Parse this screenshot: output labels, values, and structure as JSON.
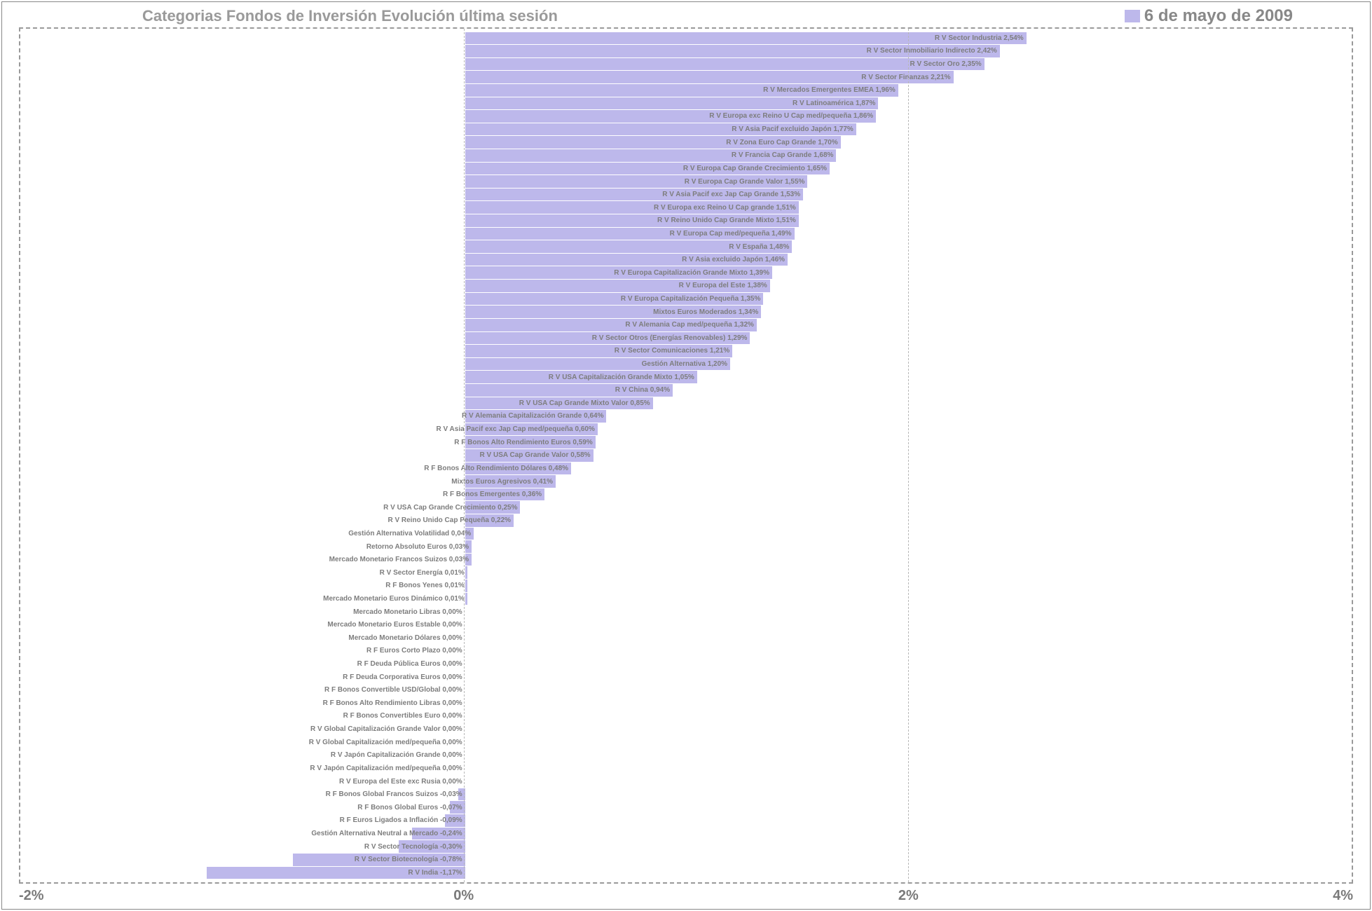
{
  "title": "Categorias Fondos de Inversión Evolución última sesión",
  "date": "6 de mayo de 2009",
  "bar_color": "#bdb8eb",
  "text_color": "#7d7d7d",
  "axis": {
    "min": -2,
    "max": 4,
    "ticks": [
      -2,
      0,
      2,
      4
    ],
    "labels": [
      "-2%",
      "0%",
      "2%",
      "4%"
    ]
  },
  "data": [
    {
      "label": "R V Sector Industria 2,54%",
      "value": 2.54
    },
    {
      "label": "R V Sector Inmobiliario Indirecto 2,42%",
      "value": 2.42
    },
    {
      "label": "R V Sector Oro 2,35%",
      "value": 2.35
    },
    {
      "label": "R V Sector Finanzas 2,21%",
      "value": 2.21
    },
    {
      "label": "R V Mercados Emergentes EMEA 1,96%",
      "value": 1.96
    },
    {
      "label": "R V Latinoamérica 1,87%",
      "value": 1.87
    },
    {
      "label": "R V Europa exc Reino U Cap med/pequeña 1,86%",
      "value": 1.86
    },
    {
      "label": "R V Asia Pacif excluido Japón 1,77%",
      "value": 1.77
    },
    {
      "label": "R V Zona Euro Cap Grande 1,70%",
      "value": 1.7
    },
    {
      "label": "R V Francia Cap Grande 1,68%",
      "value": 1.68
    },
    {
      "label": "R V Europa Cap Grande Crecimiento 1,65%",
      "value": 1.65
    },
    {
      "label": "R V Europa Cap Grande Valor 1,55%",
      "value": 1.55
    },
    {
      "label": "R V Asia Pacif exc Jap Cap Grande 1,53%",
      "value": 1.53
    },
    {
      "label": "R V Europa exc Reino U Cap grande 1,51%",
      "value": 1.51
    },
    {
      "label": "R V Reino Unido Cap Grande Mixto 1,51%",
      "value": 1.51
    },
    {
      "label": "R V Europa Cap med/pequeña 1,49%",
      "value": 1.49
    },
    {
      "label": "R V España 1,48%",
      "value": 1.48
    },
    {
      "label": "R V Asia excluido Japón 1,46%",
      "value": 1.46
    },
    {
      "label": "R V Europa Capitalización Grande Mixto 1,39%",
      "value": 1.39
    },
    {
      "label": "R V Europa del Este 1,38%",
      "value": 1.38
    },
    {
      "label": "R V Europa Capitalización Pequeña 1,35%",
      "value": 1.35
    },
    {
      "label": "Mixtos Euros Moderados 1,34%",
      "value": 1.34
    },
    {
      "label": "R V Alemania Cap med/pequeña 1,32%",
      "value": 1.32
    },
    {
      "label": "R V Sector Otros (Energías Renovables) 1,29%",
      "value": 1.29
    },
    {
      "label": "R V Sector Comunicaciones 1,21%",
      "value": 1.21
    },
    {
      "label": "Gestión Alternativa 1,20%",
      "value": 1.2
    },
    {
      "label": "R V USA Capitalización Grande Mixto 1,05%",
      "value": 1.05
    },
    {
      "label": "R V China 0,94%",
      "value": 0.94
    },
    {
      "label": "R V USA Cap Grande Mixto Valor 0,85%",
      "value": 0.85
    },
    {
      "label": "R V Alemania Capitalización Grande 0,64%",
      "value": 0.64
    },
    {
      "label": "R V Asia Pacif exc Jap Cap med/pequeña 0,60%",
      "value": 0.6
    },
    {
      "label": "R F Bonos Alto Rendimiento Euros 0,59%",
      "value": 0.59
    },
    {
      "label": "R V USA Cap Grande Valor 0,58%",
      "value": 0.58
    },
    {
      "label": "R F Bonos Alto Rendimiento Dólares 0,48%",
      "value": 0.48
    },
    {
      "label": "Mixtos Euros Agresivos 0,41%",
      "value": 0.41
    },
    {
      "label": "R F Bonos Emergentes 0,36%",
      "value": 0.36
    },
    {
      "label": "R V USA Cap Grande Crecimiento 0,25%",
      "value": 0.25
    },
    {
      "label": "R V Reino Unido Cap Pequeña 0,22%",
      "value": 0.22
    },
    {
      "label": "Gestión Alternativa Volatilidad 0,04%",
      "value": 0.04
    },
    {
      "label": "Retorno Absoluto Euros 0,03%",
      "value": 0.03
    },
    {
      "label": "Mercado Monetario Francos Suizos 0,03%",
      "value": 0.03
    },
    {
      "label": "R V Sector Energía 0,01%",
      "value": 0.01
    },
    {
      "label": "R F Bonos Yenes 0,01%",
      "value": 0.01
    },
    {
      "label": "Mercado Monetario Euros Dinámico 0,01%",
      "value": 0.01
    },
    {
      "label": "Mercado Monetario Libras 0,00%",
      "value": 0.0
    },
    {
      "label": "Mercado Monetario Euros Estable 0,00%",
      "value": 0.0
    },
    {
      "label": "Mercado Monetario Dólares 0,00%",
      "value": 0.0
    },
    {
      "label": "R F Euros Corto Plazo 0,00%",
      "value": 0.0
    },
    {
      "label": "R F Deuda Pública Euros 0,00%",
      "value": 0.0
    },
    {
      "label": "R F Deuda Corporativa Euros 0,00%",
      "value": 0.0
    },
    {
      "label": "R F Bonos Convertible USD/Global 0,00%",
      "value": 0.0
    },
    {
      "label": "R F Bonos Alto Rendimiento Libras 0,00%",
      "value": 0.0
    },
    {
      "label": "R F Bonos Convertibles Euro 0,00%",
      "value": 0.0
    },
    {
      "label": "R V Global Capitalización Grande Valor 0,00%",
      "value": 0.0
    },
    {
      "label": "R V Global Capitalización med/pequeña 0,00%",
      "value": 0.0
    },
    {
      "label": "R V Japón Capitalización Grande 0,00%",
      "value": 0.0
    },
    {
      "label": "R V Japón Capitalización med/pequeña 0,00%",
      "value": 0.0
    },
    {
      "label": "R V Europa del Este exc Rusia 0,00%",
      "value": 0.0
    },
    {
      "label": "R F Bonos Global Francos Suizos -0,03%",
      "value": -0.03
    },
    {
      "label": "R F Bonos Global Euros -0,07%",
      "value": -0.07
    },
    {
      "label": "R F Euros Ligados a Inflación -0,09%",
      "value": -0.09
    },
    {
      "label": "Gestión Alternativa Neutral a Mercado -0,24%",
      "value": -0.24
    },
    {
      "label": "R V Sector Tecnología -0,30%",
      "value": -0.3
    },
    {
      "label": "R V Sector Biotecnología -0,78%",
      "value": -0.78
    },
    {
      "label": "R V India -1,17%",
      "value": -1.17
    }
  ]
}
